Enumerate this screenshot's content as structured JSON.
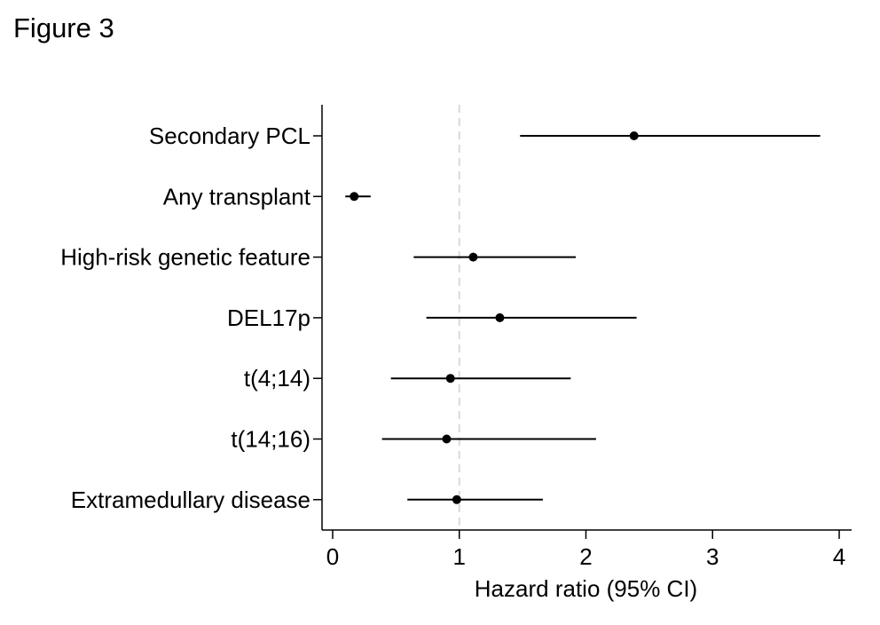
{
  "figure_title": "Figure 3",
  "chart_data": {
    "type": "forest",
    "title": "",
    "xlabel": "Hazard ratio (95% CI)",
    "ylabel": "",
    "xlim": [
      -0.08,
      4.1
    ],
    "xticks": [
      0,
      1,
      2,
      3,
      4
    ],
    "reference_line": 1,
    "colors": {
      "marker": "#000000",
      "ci": "#000000",
      "reference": "#d9d9d9",
      "axis": "#000000"
    },
    "categories": [
      "Secondary PCL",
      "Any transplant",
      "High-risk genetic feature",
      "DEL17p",
      "t(4;14)",
      "t(14;16)",
      "Extramedullary disease"
    ],
    "estimates": [
      2.38,
      0.17,
      1.11,
      1.32,
      0.93,
      0.9,
      0.98
    ],
    "ci_lower": [
      1.48,
      0.1,
      0.64,
      0.74,
      0.46,
      0.39,
      0.59
    ],
    "ci_upper": [
      3.85,
      0.3,
      1.92,
      2.4,
      1.88,
      2.08,
      1.66
    ]
  }
}
